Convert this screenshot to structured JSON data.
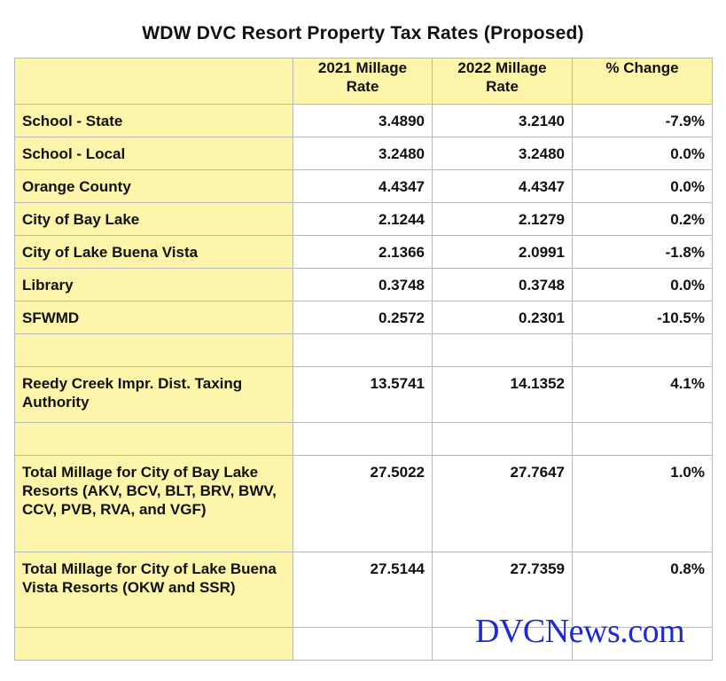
{
  "title": "WDW DVC Resort Property Tax Rates (Proposed)",
  "columns": [
    "",
    "2021 Millage Rate",
    "2022 Millage Rate",
    "% Change"
  ],
  "column_lines": [
    [
      ""
    ],
    [
      "2021 Millage",
      "Rate"
    ],
    [
      "2022 Millage",
      "Rate"
    ],
    [
      "% Change"
    ]
  ],
  "rows": [
    {
      "label": "School  - State",
      "v2021": "3.4890",
      "v2022": "3.2140",
      "change": "-7.9%"
    },
    {
      "label": "School - Local",
      "v2021": "3.2480",
      "v2022": "3.2480",
      "change": "0.0%"
    },
    {
      "label": "Orange County",
      "v2021": "4.4347",
      "v2022": "4.4347",
      "change": "0.0%"
    },
    {
      "label": "City of Bay Lake",
      "v2021": "2.1244",
      "v2022": "2.1279",
      "change": "0.2%"
    },
    {
      "label": "City of Lake Buena Vista",
      "v2021": "2.1366",
      "v2022": "2.0991",
      "change": "-1.8%"
    },
    {
      "label": "Library",
      "v2021": "0.3748",
      "v2022": "0.3748",
      "change": "0.0%"
    },
    {
      "label": "SFWMD",
      "v2021": "0.2572",
      "v2022": "0.2301",
      "change": "-10.5%"
    },
    {
      "label": "",
      "v2021": "",
      "v2022": "",
      "change": ""
    },
    {
      "label": "Reedy Creek Impr. Dist. Taxing Authority",
      "v2021": "13.5741",
      "v2022": "14.1352",
      "change": "4.1%"
    },
    {
      "label": "",
      "v2021": "",
      "v2022": "",
      "change": ""
    },
    {
      "label": "Total Millage for City of Bay Lake Resorts (AKV, BCV, BLT, BRV, BWV, CCV, PVB, RVA, and VGF)",
      "v2021": "27.5022",
      "v2022": "27.7647",
      "change": "1.0%"
    },
    {
      "label": "Total Millage for City of Lake Buena Vista Resorts (OKW and SSR)",
      "v2021": "27.5144",
      "v2022": "27.7359",
      "change": "0.8%"
    },
    {
      "label": "",
      "v2021": "",
      "v2022": "",
      "change": ""
    }
  ],
  "watermark": "DVCNews.com",
  "colors": {
    "label_fill": "#fdf5a9",
    "watermark": "#1d2bd1",
    "grid": "#b8b8b8"
  }
}
